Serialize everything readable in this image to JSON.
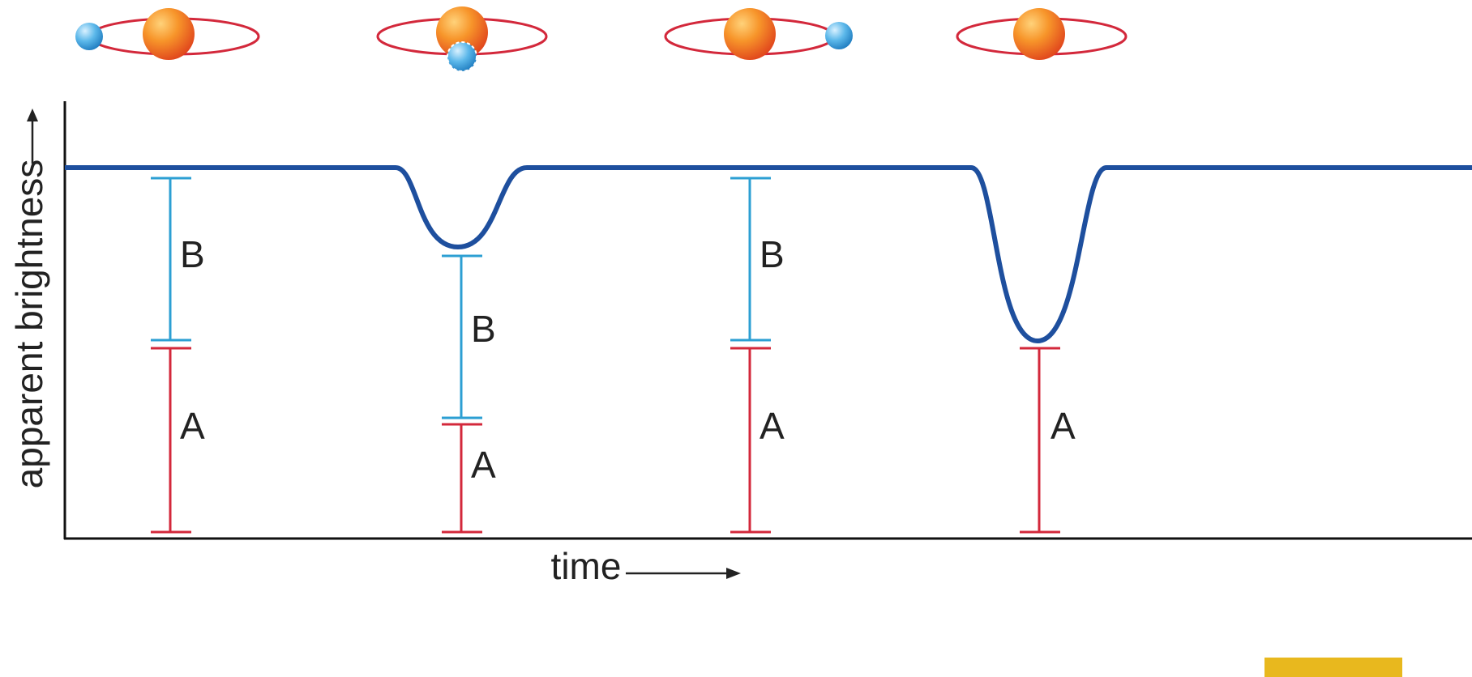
{
  "axes": {
    "y_label": "apparent brightness",
    "x_label": "time"
  },
  "phases": [
    {
      "labels": [
        "B",
        "A"
      ]
    },
    {
      "labels": [
        "B",
        "A"
      ]
    },
    {
      "labels": [
        "B",
        "A"
      ]
    },
    {
      "labels": [
        "A"
      ]
    }
  ]
}
